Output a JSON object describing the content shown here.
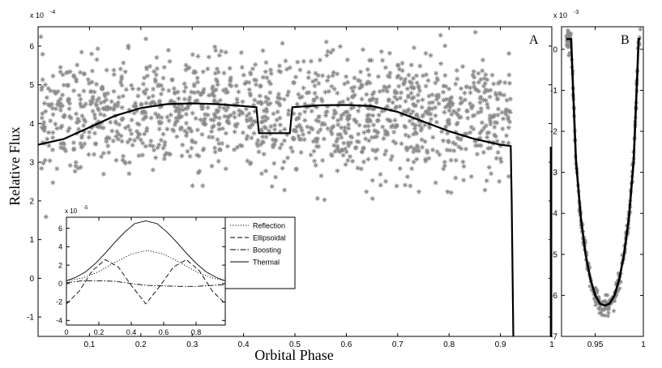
{
  "figure": {
    "ylabel": "Relative Flux",
    "xlabel": "Orbital Phase"
  },
  "chart_data": [
    {
      "panel_label": "A",
      "type": "scatter",
      "y_multiplier": "x 10",
      "y_exponent": "-4",
      "xlim": [
        0.0,
        1.0
      ],
      "ylim": [
        -1.5,
        6.5
      ],
      "xticks": [
        "0.1",
        "0.2",
        "0.3",
        "0.4",
        "0.5",
        "0.6",
        "0.7",
        "0.8",
        "0.9",
        "1"
      ],
      "yticks": [
        "-1",
        "0",
        "1",
        "2",
        "3",
        "4",
        "5",
        "6"
      ],
      "scatter": {
        "color": "#8a8a8a",
        "marker": "asterisk",
        "approx_mean": 4.2,
        "approx_spread": 0.75,
        "n_points": 1400
      },
      "model_line": {
        "color": "#000000",
        "x": [
          0.0,
          0.05,
          0.1,
          0.15,
          0.2,
          0.25,
          0.3,
          0.35,
          0.4,
          0.425,
          0.43,
          0.49,
          0.495,
          0.55,
          0.6,
          0.65,
          0.7,
          0.75,
          0.8,
          0.85,
          0.9,
          0.92,
          0.922,
          0.925
        ],
        "y": [
          3.45,
          3.6,
          3.9,
          4.2,
          4.4,
          4.5,
          4.52,
          4.5,
          4.45,
          4.42,
          3.75,
          3.75,
          4.42,
          4.47,
          4.48,
          4.45,
          4.3,
          4.05,
          3.8,
          3.6,
          3.45,
          3.42,
          2.0,
          -1.5
        ]
      },
      "edge_line": {
        "x": [
          0.998,
          0.998
        ],
        "y": [
          -1.5,
          3.4
        ]
      },
      "annotation": "A"
    },
    {
      "panel_label": "B",
      "type": "scatter",
      "y_multiplier": "x 10",
      "y_exponent": "-3",
      "xlim": [
        0.915,
        1.0
      ],
      "ylim": [
        -7.0,
        0.55
      ],
      "xticks": [
        "0.95",
        "1"
      ],
      "yticks": [
        "-7",
        "-6",
        "-5",
        "-4",
        "-3",
        "-2",
        "-1",
        "0"
      ],
      "model_line": {
        "color": "#000000",
        "x": [
          0.92,
          0.925,
          0.926,
          0.93,
          0.935,
          0.94,
          0.945,
          0.95,
          0.955,
          0.96,
          0.965,
          0.97,
          0.975,
          0.98,
          0.985,
          0.99,
          0.994,
          0.995,
          0.997
        ],
        "y": [
          0.25,
          0.25,
          -0.4,
          -2.7,
          -4.1,
          -5.0,
          -5.6,
          -6.0,
          -6.2,
          -6.25,
          -6.2,
          -6.0,
          -5.6,
          -5.0,
          -4.1,
          -2.7,
          -0.4,
          0.25,
          0.25
        ]
      },
      "scatter": {
        "color": "#8a8a8a",
        "marker": "asterisk",
        "follows": "model_line",
        "approx_spread": 0.12,
        "n_points": 260
      },
      "annotation": "B"
    },
    {
      "panel_label": "inset",
      "type": "line",
      "y_multiplier": "x 10",
      "y_exponent": "-5",
      "xlim": [
        0.0,
        0.98
      ],
      "ylim": [
        -4.5,
        7.2
      ],
      "xticks": [
        "0",
        "0.2",
        "0.4",
        "0.6",
        "0.8"
      ],
      "yticks": [
        "-4",
        "-2",
        "0",
        "2",
        "4",
        "6"
      ],
      "legend": {
        "placement": "right"
      },
      "series": [
        {
          "name": "Reflection",
          "style": "dotted",
          "x": [
            0,
            0.1,
            0.2,
            0.3,
            0.4,
            0.5,
            0.6,
            0.7,
            0.8,
            0.9,
            0.98
          ],
          "y": [
            0.3,
            0.6,
            1.3,
            2.3,
            3.2,
            3.6,
            3.2,
            2.3,
            1.3,
            0.6,
            0.3
          ]
        },
        {
          "name": "Ellipsoidal",
          "style": "dashed",
          "x": [
            0,
            0.08,
            0.16,
            0.24,
            0.32,
            0.4,
            0.49,
            0.58,
            0.66,
            0.74,
            0.82,
            0.9,
            0.98
          ],
          "y": [
            -2.2,
            -0.8,
            1.4,
            2.6,
            1.8,
            -0.2,
            -2.2,
            -0.2,
            1.8,
            2.6,
            1.4,
            -0.8,
            -2.2
          ]
        },
        {
          "name": "Boosting",
          "style": "dashdot",
          "x": [
            0,
            0.1,
            0.2,
            0.3,
            0.4,
            0.5,
            0.6,
            0.7,
            0.8,
            0.9,
            0.98
          ],
          "y": [
            0.1,
            0.3,
            0.3,
            0.25,
            0.0,
            -0.2,
            -0.25,
            -0.3,
            -0.3,
            -0.2,
            -0.1
          ]
        },
        {
          "name": "Thermal",
          "style": "solid",
          "x": [
            0,
            0.06,
            0.12,
            0.18,
            0.24,
            0.3,
            0.36,
            0.42,
            0.49,
            0.56,
            0.62,
            0.68,
            0.74,
            0.8,
            0.86,
            0.92,
            0.98
          ],
          "y": [
            0.3,
            0.7,
            1.3,
            2.2,
            3.3,
            4.5,
            5.6,
            6.5,
            6.8,
            6.5,
            5.6,
            4.5,
            3.3,
            2.2,
            1.3,
            0.7,
            0.3
          ]
        }
      ]
    }
  ]
}
